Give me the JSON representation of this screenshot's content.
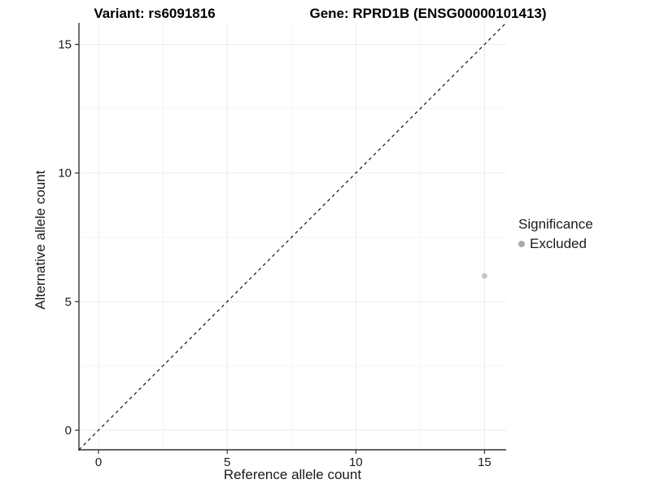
{
  "chart_data": {
    "type": "scatter",
    "title_left": "Variant: rs6091816",
    "title_right": "Gene: RPRD1B (ENSG00000101413)",
    "xlabel": "Reference allele count",
    "ylabel": "Alternative allele count",
    "x_ticks": [
      0,
      5,
      10,
      15
    ],
    "y_ticks": [
      0,
      5,
      10,
      15
    ],
    "x_minor_ticks": [
      2.5,
      7.5,
      12.5
    ],
    "y_minor_ticks": [
      2.5,
      7.5,
      12.5
    ],
    "xlim": [
      -0.76,
      15.84
    ],
    "ylim": [
      -0.76,
      15.84
    ],
    "grid": "major and minor, very light",
    "points": [
      {
        "x": 15,
        "y": 6,
        "significance": "Excluded"
      }
    ],
    "identity_line": {
      "equation": "y = x",
      "style": "dashed",
      "color": "#111111"
    },
    "legend": {
      "title": "Significance",
      "position": "right",
      "entries": [
        {
          "label": "Excluded",
          "color": "#ababab"
        }
      ]
    },
    "colors": {
      "point": "#c6c6c6",
      "axis_line": "#333333",
      "tick_mark": "#333333",
      "tick_label": "#1a1a1a",
      "grid_major": "#ebebeb",
      "grid_minor": "#f5f5f5",
      "background": "#ffffff"
    },
    "point_radius": 3.5
  }
}
